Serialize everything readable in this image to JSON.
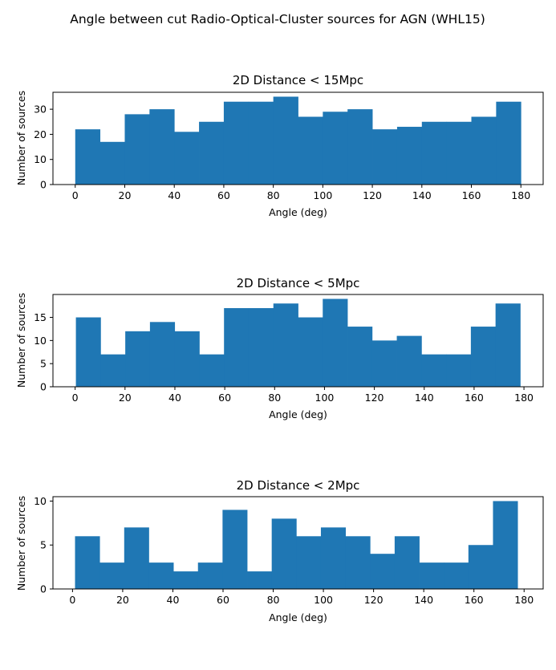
{
  "figure": {
    "suptitle": "Angle between cut Radio-Optical-Cluster sources for AGN (WHL15)"
  },
  "colors": {
    "bar": "#1f77b4",
    "axes": "#000000",
    "background": "#ffffff"
  },
  "chart_data": [
    {
      "type": "bar",
      "title": "2D Distance < 15Mpc",
      "xlabel": "Angle (deg)",
      "ylabel": "Number of sources",
      "xlim": [
        -9,
        189
      ],
      "ylim": [
        0,
        36.75
      ],
      "xticks": [
        0,
        20,
        40,
        60,
        80,
        100,
        120,
        140,
        160,
        180
      ],
      "yticks": [
        0,
        10,
        20,
        30
      ],
      "bin_edges": [
        0,
        10,
        20,
        30,
        40,
        50,
        60,
        70,
        80,
        90,
        100,
        110,
        120,
        130,
        140,
        150,
        160,
        170,
        180
      ],
      "values": [
        22,
        17,
        28,
        30,
        21,
        25,
        33,
        33,
        35,
        27,
        29,
        30,
        22,
        23,
        25,
        25,
        27,
        33
      ]
    },
    {
      "type": "bar",
      "title": "2D Distance < 5Mpc",
      "xlabel": "Angle (deg)",
      "ylabel": "Number of sources",
      "xlim": [
        -8.9,
        187.7
      ],
      "ylim": [
        0,
        19.95
      ],
      "xticks": [
        0,
        20,
        40,
        60,
        80,
        100,
        120,
        140,
        160,
        180
      ],
      "yticks": [
        0,
        5,
        10,
        15
      ],
      "bin_edges": [
        0.3,
        10.2,
        20.1,
        30.0,
        39.9,
        49.8,
        59.7,
        69.6,
        79.5,
        89.4,
        99.3,
        109.2,
        119.1,
        129.0,
        138.9,
        148.8,
        158.7,
        168.6,
        178.5
      ],
      "values": [
        15,
        7,
        12,
        14,
        12,
        7,
        17,
        17,
        18,
        15,
        19,
        13,
        10,
        11,
        7,
        7,
        13,
        18
      ]
    },
    {
      "type": "bar",
      "title": "2D Distance < 2Mpc",
      "xlabel": "Angle (deg)",
      "ylabel": "Number of sources",
      "xlim": [
        -7.8,
        187.6
      ],
      "ylim": [
        0,
        10.5
      ],
      "xticks": [
        0,
        20,
        40,
        60,
        80,
        100,
        120,
        140,
        160,
        180
      ],
      "yticks": [
        0,
        5,
        10
      ],
      "bin_edges": [
        1.0,
        10.8,
        20.6,
        30.4,
        40.2,
        50.0,
        59.8,
        69.6,
        79.4,
        89.2,
        99.0,
        108.8,
        118.6,
        128.4,
        138.2,
        148.0,
        157.8,
        167.6,
        177.4
      ],
      "values": [
        6,
        3,
        7,
        3,
        2,
        3,
        9,
        2,
        8,
        6,
        7,
        6,
        4,
        6,
        3,
        3,
        5,
        10
      ]
    }
  ]
}
